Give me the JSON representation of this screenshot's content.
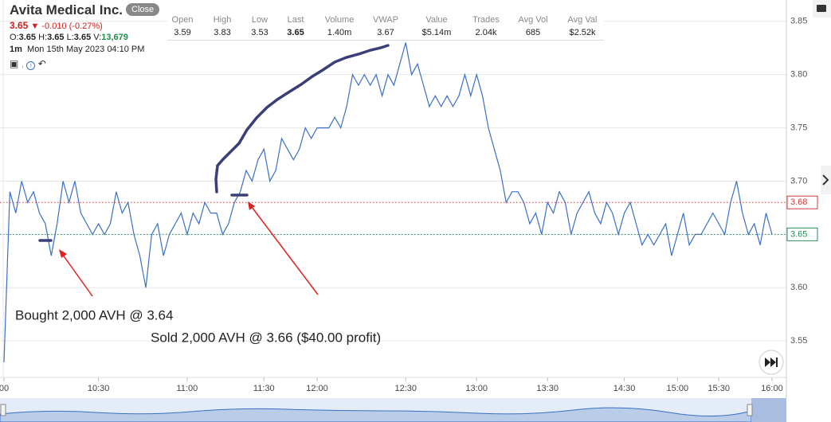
{
  "header": {
    "title": "Avita Medical Inc.",
    "close_button": "Close",
    "price": "3.65",
    "change": "-0.010 (-0.27%)",
    "ohlc": [
      {
        "label": "O:",
        "value": "3.65"
      },
      {
        "label": "H:",
        "value": "3.65"
      },
      {
        "label": "L:",
        "value": "3.65"
      },
      {
        "label": "V:",
        "value": "13,679"
      }
    ],
    "interval": "1m",
    "datetime": "Mon 15th May 2023 04:10 PM"
  },
  "stats": [
    {
      "label": "Open",
      "value": "3.59"
    },
    {
      "label": "High",
      "value": "3.83"
    },
    {
      "label": "Low",
      "value": "3.53"
    },
    {
      "label": "Last",
      "value": "3.65"
    },
    {
      "label": "Volume",
      "value": "1.40m"
    },
    {
      "label": "VWAP",
      "value": "3.67"
    },
    {
      "label": "Value",
      "value": "$5.14m"
    },
    {
      "label": "Trades",
      "value": "2.04k"
    },
    {
      "label": "Avg Vol",
      "value": "685"
    },
    {
      "label": "Avg Val",
      "value": "$2.52k"
    }
  ],
  "chart_data": {
    "type": "line",
    "color": "#3a6fc4",
    "categories": [
      "00",
      null,
      null,
      null,
      null,
      null,
      null,
      null,
      null,
      null,
      null,
      null,
      null,
      null,
      null,
      null,
      "10:30",
      null,
      null,
      null,
      null,
      null,
      null,
      null,
      null,
      null,
      null,
      null,
      null,
      null,
      null,
      "11:00",
      null,
      null,
      null,
      null,
      null,
      null,
      null,
      null,
      null,
      null,
      null,
      null,
      "11:30",
      null,
      null,
      null,
      null,
      null,
      null,
      null,
      null,
      "12:00",
      null,
      null,
      null,
      null,
      null,
      null,
      null,
      null,
      null,
      null,
      null,
      null,
      null,
      null,
      "12:30",
      null,
      null,
      null,
      null,
      null,
      null,
      null,
      null,
      null,
      null,
      null,
      "13:00",
      null,
      null,
      null,
      null,
      null,
      null,
      null,
      null,
      null,
      null,
      null,
      "13:30",
      null,
      null,
      null,
      null,
      null,
      null,
      null,
      null,
      null,
      null,
      null,
      null,
      "14:30",
      null,
      null,
      null,
      null,
      null,
      null,
      null,
      null,
      "15:00",
      null,
      null,
      null,
      null,
      null,
      null,
      "15:30",
      null,
      null,
      null,
      null,
      null,
      null,
      null,
      null,
      "16:00"
    ],
    "values": [
      3.53,
      3.69,
      3.67,
      3.7,
      3.68,
      3.69,
      3.67,
      3.66,
      3.63,
      3.66,
      3.7,
      3.68,
      3.7,
      3.67,
      3.66,
      3.65,
      3.66,
      3.65,
      3.66,
      3.69,
      3.67,
      3.68,
      3.65,
      3.63,
      3.6,
      3.65,
      3.66,
      3.63,
      3.65,
      3.66,
      3.67,
      3.65,
      3.67,
      3.66,
      3.68,
      3.67,
      3.67,
      3.65,
      3.66,
      3.68,
      3.69,
      3.71,
      3.7,
      3.72,
      3.73,
      3.7,
      3.71,
      3.74,
      3.73,
      3.72,
      3.73,
      3.75,
      3.74,
      3.75,
      3.75,
      3.75,
      3.76,
      3.75,
      3.77,
      3.8,
      3.79,
      3.8,
      3.79,
      3.8,
      3.78,
      3.8,
      3.79,
      3.81,
      3.83,
      3.8,
      3.81,
      3.79,
      3.77,
      3.78,
      3.77,
      3.78,
      3.77,
      3.78,
      3.8,
      3.78,
      3.8,
      3.78,
      3.75,
      3.73,
      3.71,
      3.68,
      3.69,
      3.69,
      3.68,
      3.66,
      3.67,
      3.65,
      3.68,
      3.67,
      3.69,
      3.68,
      3.65,
      3.67,
      3.68,
      3.69,
      3.67,
      3.66,
      3.68,
      3.67,
      3.65,
      3.67,
      3.68,
      3.66,
      3.64,
      3.65,
      3.64,
      3.65,
      3.66,
      3.63,
      3.65,
      3.67,
      3.64,
      3.65,
      3.65,
      3.66,
      3.67,
      3.66,
      3.65,
      3.68,
      3.7,
      3.67,
      3.65,
      3.66,
      3.64,
      3.67,
      3.65
    ],
    "ylim": [
      3.515,
      3.87
    ],
    "yticks": [
      {
        "value": 3.55,
        "label": "3.55"
      },
      {
        "value": 3.6,
        "label": "3.60"
      },
      {
        "value": 3.65,
        "label": "3.65"
      },
      {
        "value": 3.7,
        "label": "3.70"
      },
      {
        "value": 3.75,
        "label": "3.75"
      },
      {
        "value": 3.8,
        "label": "3.80"
      },
      {
        "value": 3.85,
        "label": "3.85"
      }
    ],
    "grid": true,
    "ref_lines": [
      {
        "value": 3.68,
        "color": "#d33a3a"
      },
      {
        "value": 3.65,
        "color": "#2a8a5a"
      }
    ],
    "annotations": [
      "Bought 2,000 AVH @ 3.64",
      "Sold 2,000 AVH @ 3.66 ($40.00 profit)"
    ]
  }
}
